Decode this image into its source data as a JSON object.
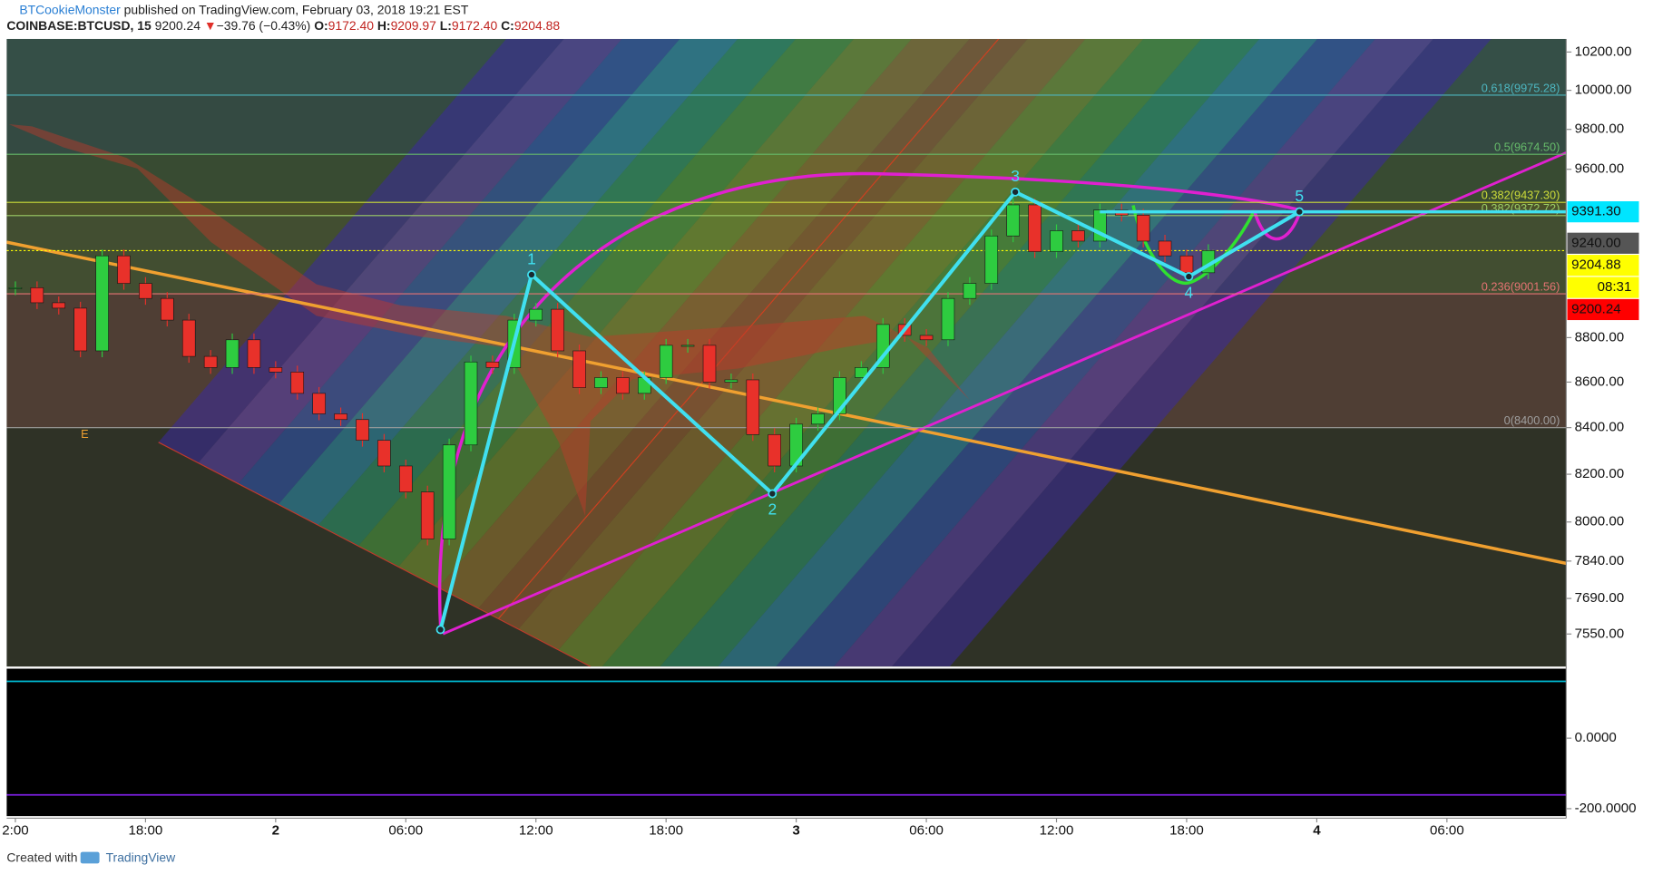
{
  "header": {
    "author": "BTCookieMonster",
    "published": "published on TradingView.com, February 03, 2018 19:21 EST",
    "symbol": "COINBASE:BTCUSD, 15",
    "last": "9200.24",
    "arrow": "▼",
    "change": "−39.76 (−0.43%)",
    "o_label": "O:",
    "open": "9172.40",
    "h_label": "H:",
    "high": "9209.97",
    "l_label": "L:",
    "low": "9172.40",
    "c_label": "C:",
    "close": "9204.88"
  },
  "chart_data": {
    "type": "candlestick",
    "x": [
      0,
      1,
      2,
      3,
      4,
      5,
      6,
      7,
      8,
      9,
      10,
      11,
      12,
      13,
      14,
      15,
      16,
      17,
      18,
      19,
      20,
      21,
      22,
      23,
      24,
      25,
      26,
      27,
      28,
      29,
      30,
      31,
      32,
      33,
      34,
      35,
      36,
      37,
      38,
      39,
      40,
      41,
      42,
      43,
      44,
      45,
      46,
      47,
      48,
      49,
      50,
      51,
      52,
      53,
      54,
      55
    ],
    "values": [
      9030,
      8960,
      8935,
      8740,
      9180,
      9050,
      8980,
      8880,
      8715,
      8665,
      8790,
      8665,
      8645,
      8550,
      8460,
      8435,
      8345,
      8235,
      8125,
      7930,
      8325,
      8690,
      8665,
      8880,
      8930,
      8740,
      8575,
      8620,
      8550,
      8620,
      8765,
      8765,
      8600,
      8610,
      8370,
      8235,
      8415,
      8460,
      8620,
      8665,
      8860,
      8810,
      8790,
      8980,
      9050,
      9275,
      9425,
      9200,
      9300,
      9250,
      9400,
      9375,
      9250,
      9180,
      9100,
      9204.88
    ],
    "up_color": "#2ecc40",
    "down_color": "#e8312a",
    "xlim": [
      -0.4,
      71.5
    ],
    "xticks": [
      {
        "value": 0,
        "label": "2:00"
      },
      {
        "value": 6,
        "label": "18:00"
      },
      {
        "value": 12,
        "label": "2"
      },
      {
        "value": 18,
        "label": "06:00"
      },
      {
        "value": 24,
        "label": "12:00"
      },
      {
        "value": 30,
        "label": "18:00"
      },
      {
        "value": 36,
        "label": "3"
      },
      {
        "value": 42,
        "label": "06:00"
      },
      {
        "value": 48,
        "label": "12:00"
      },
      {
        "value": 54,
        "label": "18:00"
      },
      {
        "value": 60,
        "label": "4"
      },
      {
        "value": 66,
        "label": "06:00"
      }
    ],
    "ylim": [
      7424,
      10269
    ],
    "log": true,
    "yticks": [
      {
        "value": 10200,
        "label": "10200.00"
      },
      {
        "value": 10000,
        "label": "10000.00"
      },
      {
        "value": 9800,
        "label": "9800.00"
      },
      {
        "value": 9600,
        "label": "9600.00"
      },
      {
        "value": 8800,
        "label": "8800.00"
      },
      {
        "value": 8600,
        "label": "8600.00"
      },
      {
        "value": 8400,
        "label": "8400.00"
      },
      {
        "value": 8200,
        "label": "8200.00"
      },
      {
        "value": 8000,
        "label": "8000.00"
      },
      {
        "value": 7840,
        "label": "7840.00"
      },
      {
        "value": 7690,
        "label": "7690.00"
      },
      {
        "value": 7550,
        "label": "7550.00"
      }
    ],
    "fib": [
      {
        "price": 9975.28,
        "label": "0.618(9975.28)",
        "color": "#4db6c0"
      },
      {
        "price": 9674.5,
        "label": "0.5(9674.50)",
        "color": "#66bb6a"
      },
      {
        "price": 9437.3,
        "label": "0.382(9437.30)",
        "color": "#cddc39"
      },
      {
        "price": 9372.72,
        "label": "0.382(9372.72)",
        "color": "#9ccc65"
      },
      {
        "price": 9001.56,
        "label": "0.236(9001.56)",
        "color": "#e57373"
      },
      {
        "price": 8400,
        "label": "0(8400.00)",
        "color": "#9e9e9e"
      }
    ],
    "price_labels": [
      {
        "value": 9391.3,
        "label": "9391.30",
        "color": "#00e5ff",
        "text_color": "#000000"
      },
      {
        "value": 9240,
        "label": "9240.00",
        "color": "#555555",
        "text_color": "#ffffff"
      },
      {
        "value": 9204.88,
        "label": "9204.88",
        "color": "#ffff00",
        "text_color": "#000000"
      },
      {
        "value": 9200.24,
        "label": "9200.24",
        "color": "#ff0000",
        "text_color": "#ffffff"
      }
    ],
    "countdown": "08:31",
    "wave": {
      "x": [
        19.6,
        23.8,
        34.9,
        46.1,
        54.1,
        59.2
      ],
      "values": [
        7567,
        9091,
        8118,
        9488,
        9082,
        9391.3
      ],
      "labels": [
        null,
        "1",
        "2",
        "3",
        "4",
        "5"
      ],
      "color": "#40e0f0"
    },
    "annotations": [
      "E"
    ],
    "macd": {
      "ylim": [
        -221,
        197
      ],
      "yticks": [
        {
          "value": 0,
          "label": "0.0000"
        },
        {
          "value": -200,
          "label": "-200.0000"
        }
      ],
      "levels": [
        {
          "value": 161,
          "color": "#00bcd4"
        },
        {
          "value": -161,
          "color": "#7b1fe0"
        }
      ]
    }
  },
  "footer": {
    "created": "Created with",
    "brand": "TradingView"
  }
}
